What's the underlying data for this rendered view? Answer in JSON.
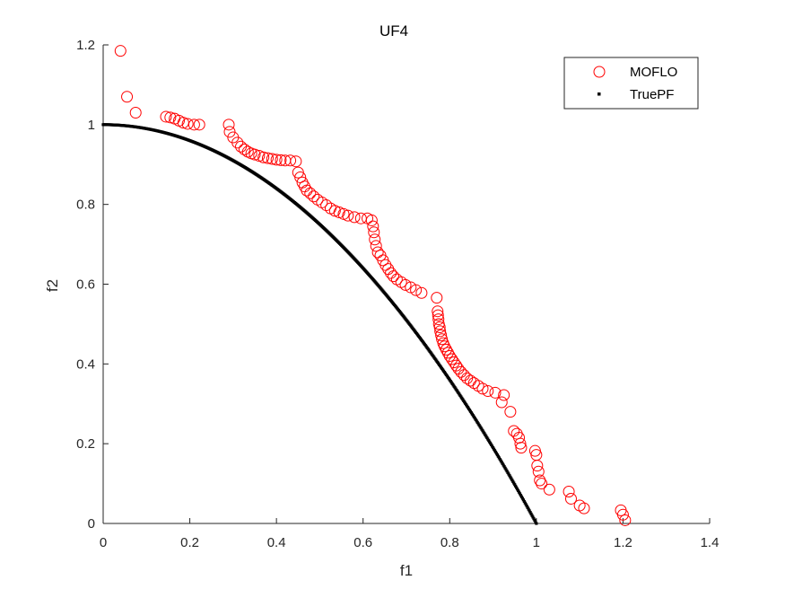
{
  "chart_data": {
    "type": "scatter",
    "title": "UF4",
    "xlabel": "f1",
    "ylabel": "f2",
    "xlim": [
      0,
      1.4
    ],
    "ylim": [
      0,
      1.2
    ],
    "xticks": [
      "0",
      "0.2",
      "0.4",
      "0.6",
      "0.8",
      "1",
      "1.2",
      "1.4"
    ],
    "yticks": [
      "0",
      "0.2",
      "0.4",
      "0.6",
      "0.8",
      "1",
      "1.2"
    ],
    "grid": false,
    "legend_position": "top-right",
    "series": [
      {
        "name": "MOFLO",
        "marker": "open-circle",
        "color": "#ff0000",
        "points": [
          [
            0.04,
            1.185
          ],
          [
            0.055,
            1.07
          ],
          [
            0.075,
            1.03
          ],
          [
            0.145,
            1.02
          ],
          [
            0.155,
            1.018
          ],
          [
            0.165,
            1.015
          ],
          [
            0.175,
            1.01
          ],
          [
            0.185,
            1.005
          ],
          [
            0.195,
            1.002
          ],
          [
            0.21,
            1.0
          ],
          [
            0.222,
            1.0
          ],
          [
            0.29,
            1.0
          ],
          [
            0.292,
            0.982
          ],
          [
            0.3,
            0.968
          ],
          [
            0.31,
            0.955
          ],
          [
            0.318,
            0.945
          ],
          [
            0.326,
            0.938
          ],
          [
            0.334,
            0.932
          ],
          [
            0.342,
            0.928
          ],
          [
            0.35,
            0.925
          ],
          [
            0.36,
            0.922
          ],
          [
            0.37,
            0.918
          ],
          [
            0.38,
            0.916
          ],
          [
            0.39,
            0.914
          ],
          [
            0.4,
            0.912
          ],
          [
            0.41,
            0.911
          ],
          [
            0.42,
            0.91
          ],
          [
            0.432,
            0.91
          ],
          [
            0.445,
            0.908
          ],
          [
            0.45,
            0.88
          ],
          [
            0.455,
            0.868
          ],
          [
            0.46,
            0.855
          ],
          [
            0.465,
            0.845
          ],
          [
            0.47,
            0.835
          ],
          [
            0.478,
            0.828
          ],
          [
            0.486,
            0.82
          ],
          [
            0.495,
            0.812
          ],
          [
            0.505,
            0.805
          ],
          [
            0.515,
            0.798
          ],
          [
            0.525,
            0.79
          ],
          [
            0.535,
            0.784
          ],
          [
            0.545,
            0.78
          ],
          [
            0.555,
            0.776
          ],
          [
            0.565,
            0.772
          ],
          [
            0.58,
            0.768
          ],
          [
            0.595,
            0.765
          ],
          [
            0.61,
            0.765
          ],
          [
            0.62,
            0.76
          ],
          [
            0.623,
            0.745
          ],
          [
            0.625,
            0.73
          ],
          [
            0.627,
            0.712
          ],
          [
            0.63,
            0.696
          ],
          [
            0.634,
            0.68
          ],
          [
            0.64,
            0.672
          ],
          [
            0.646,
            0.66
          ],
          [
            0.652,
            0.648
          ],
          [
            0.658,
            0.638
          ],
          [
            0.664,
            0.628
          ],
          [
            0.67,
            0.62
          ],
          [
            0.678,
            0.612
          ],
          [
            0.688,
            0.605
          ],
          [
            0.698,
            0.598
          ],
          [
            0.71,
            0.592
          ],
          [
            0.722,
            0.585
          ],
          [
            0.735,
            0.578
          ],
          [
            0.77,
            0.566
          ],
          [
            0.772,
            0.532
          ],
          [
            0.773,
            0.522
          ],
          [
            0.774,
            0.512
          ],
          [
            0.775,
            0.5
          ],
          [
            0.777,
            0.492
          ],
          [
            0.778,
            0.482
          ],
          [
            0.78,
            0.472
          ],
          [
            0.782,
            0.462
          ],
          [
            0.785,
            0.452
          ],
          [
            0.788,
            0.444
          ],
          [
            0.792,
            0.436
          ],
          [
            0.796,
            0.428
          ],
          [
            0.8,
            0.42
          ],
          [
            0.805,
            0.412
          ],
          [
            0.81,
            0.404
          ],
          [
            0.815,
            0.396
          ],
          [
            0.82,
            0.388
          ],
          [
            0.826,
            0.38
          ],
          [
            0.833,
            0.372
          ],
          [
            0.84,
            0.364
          ],
          [
            0.848,
            0.358
          ],
          [
            0.856,
            0.352
          ],
          [
            0.866,
            0.345
          ],
          [
            0.876,
            0.338
          ],
          [
            0.888,
            0.332
          ],
          [
            0.905,
            0.328
          ],
          [
            0.925,
            0.322
          ],
          [
            0.92,
            0.304
          ],
          [
            0.94,
            0.28
          ],
          [
            0.948,
            0.232
          ],
          [
            0.955,
            0.225
          ],
          [
            0.96,
            0.215
          ],
          [
            0.963,
            0.2
          ],
          [
            0.965,
            0.19
          ],
          [
            0.997,
            0.182
          ],
          [
            1.0,
            0.172
          ],
          [
            1.002,
            0.145
          ],
          [
            1.005,
            0.13
          ],
          [
            1.008,
            0.108
          ],
          [
            1.012,
            0.1
          ],
          [
            1.03,
            0.085
          ],
          [
            1.075,
            0.08
          ],
          [
            1.08,
            0.062
          ],
          [
            1.1,
            0.045
          ],
          [
            1.11,
            0.038
          ],
          [
            1.195,
            0.033
          ],
          [
            1.2,
            0.022
          ],
          [
            1.205,
            0.008
          ]
        ]
      },
      {
        "name": "TruePF",
        "marker": "dot",
        "color": "#000000",
        "function": "f2 = 1 - f1^2",
        "x_range": [
          0,
          1
        ]
      }
    ]
  }
}
